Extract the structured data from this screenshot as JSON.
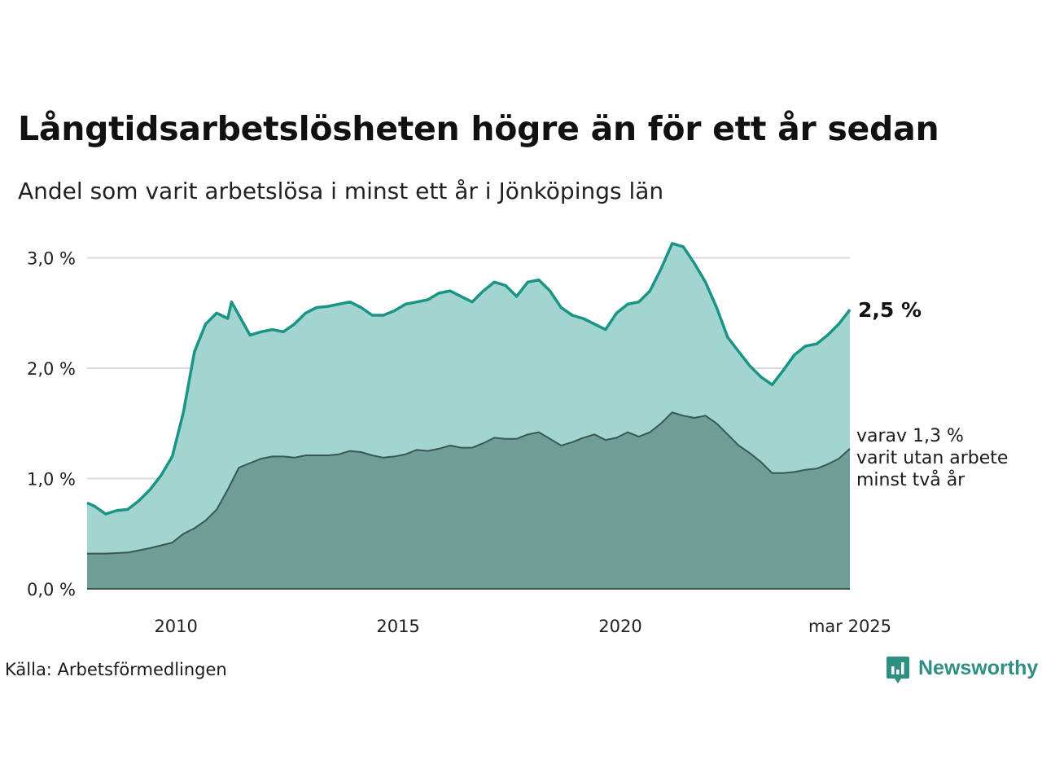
{
  "title": "Långtidsarbetslösheten högre än för ett år sedan",
  "subtitle": "Andel som varit arbetslösa i minst ett år i Jönköpings län",
  "source": "Källa: Arbetsförmedlingen",
  "logo": {
    "text": "Newsworthy",
    "icon": "bar-chart-speech-bubble-icon"
  },
  "colors": {
    "total_line": "#1a9484",
    "total_area": "#a3d5d0",
    "sub_line": "#3a5750",
    "sub_area": "#6f9e97",
    "grid": "#d9d9df"
  },
  "chart_data": {
    "type": "area",
    "title": "Långtidsarbetslösheten högre än för ett år sedan",
    "subtitle": "Andel som varit arbetslösa i minst ett år i Jönköpings län",
    "xlabel": "",
    "ylabel": "",
    "x_ticks": [
      "2010",
      "2015",
      "2020",
      "mar 2025"
    ],
    "y_ticks": [
      "0,0 %",
      "1,0 %",
      "2,0 %",
      "3,0 %"
    ],
    "ylim": [
      0,
      3.2
    ],
    "grid": "horizontal",
    "series": [
      {
        "key": "total",
        "points": [
          [
            "2008-01",
            0.78
          ],
          [
            "2008-03",
            0.75
          ],
          [
            "2008-06",
            0.68
          ],
          [
            "2008-09",
            0.71
          ],
          [
            "2008-12",
            0.72
          ],
          [
            "2009-03",
            0.8
          ],
          [
            "2009-06",
            0.9
          ],
          [
            "2009-09",
            1.03
          ],
          [
            "2009-12",
            1.2
          ],
          [
            "2010-03",
            1.6
          ],
          [
            "2010-06",
            2.15
          ],
          [
            "2010-09",
            2.4
          ],
          [
            "2010-12",
            2.5
          ],
          [
            "2011-03",
            2.45
          ],
          [
            "2011-04",
            2.6
          ],
          [
            "2011-06",
            2.48
          ],
          [
            "2011-09",
            2.3
          ],
          [
            "2011-12",
            2.33
          ],
          [
            "2012-03",
            2.35
          ],
          [
            "2012-06",
            2.33
          ],
          [
            "2012-09",
            2.4
          ],
          [
            "2012-12",
            2.5
          ],
          [
            "2013-03",
            2.55
          ],
          [
            "2013-06",
            2.56
          ],
          [
            "2013-09",
            2.58
          ],
          [
            "2013-12",
            2.6
          ],
          [
            "2014-03",
            2.55
          ],
          [
            "2014-06",
            2.48
          ],
          [
            "2014-09",
            2.48
          ],
          [
            "2014-12",
            2.52
          ],
          [
            "2015-03",
            2.58
          ],
          [
            "2015-06",
            2.6
          ],
          [
            "2015-09",
            2.62
          ],
          [
            "2015-12",
            2.68
          ],
          [
            "2016-03",
            2.7
          ],
          [
            "2016-06",
            2.65
          ],
          [
            "2016-09",
            2.6
          ],
          [
            "2016-12",
            2.7
          ],
          [
            "2017-03",
            2.78
          ],
          [
            "2017-06",
            2.75
          ],
          [
            "2017-09",
            2.65
          ],
          [
            "2017-12",
            2.78
          ],
          [
            "2018-03",
            2.8
          ],
          [
            "2018-06",
            2.7
          ],
          [
            "2018-09",
            2.55
          ],
          [
            "2018-12",
            2.48
          ],
          [
            "2019-03",
            2.45
          ],
          [
            "2019-06",
            2.4
          ],
          [
            "2019-09",
            2.35
          ],
          [
            "2019-12",
            2.5
          ],
          [
            "2020-03",
            2.58
          ],
          [
            "2020-06",
            2.6
          ],
          [
            "2020-09",
            2.7
          ],
          [
            "2020-12",
            2.9
          ],
          [
            "2021-03",
            3.13
          ],
          [
            "2021-06",
            3.1
          ],
          [
            "2021-09",
            2.95
          ],
          [
            "2021-12",
            2.78
          ],
          [
            "2022-03",
            2.55
          ],
          [
            "2022-06",
            2.28
          ],
          [
            "2022-09",
            2.15
          ],
          [
            "2022-12",
            2.02
          ],
          [
            "2023-03",
            1.92
          ],
          [
            "2023-06",
            1.85
          ],
          [
            "2023-09",
            1.98
          ],
          [
            "2023-12",
            2.12
          ],
          [
            "2024-03",
            2.2
          ],
          [
            "2024-06",
            2.22
          ],
          [
            "2024-09",
            2.3
          ],
          [
            "2024-12",
            2.4
          ],
          [
            "2025-03",
            2.53
          ]
        ],
        "last_label": "2,5 %"
      },
      {
        "key": "two_years",
        "points": [
          [
            "2008-01",
            0.32
          ],
          [
            "2008-06",
            0.32
          ],
          [
            "2008-12",
            0.33
          ],
          [
            "2009-06",
            0.37
          ],
          [
            "2009-12",
            0.42
          ],
          [
            "2010-03",
            0.5
          ],
          [
            "2010-06",
            0.55
          ],
          [
            "2010-09",
            0.62
          ],
          [
            "2010-12",
            0.72
          ],
          [
            "2011-03",
            0.9
          ],
          [
            "2011-06",
            1.1
          ],
          [
            "2011-09",
            1.14
          ],
          [
            "2011-12",
            1.18
          ],
          [
            "2012-03",
            1.2
          ],
          [
            "2012-06",
            1.2
          ],
          [
            "2012-09",
            1.19
          ],
          [
            "2012-12",
            1.21
          ],
          [
            "2013-03",
            1.21
          ],
          [
            "2013-06",
            1.21
          ],
          [
            "2013-09",
            1.22
          ],
          [
            "2013-12",
            1.25
          ],
          [
            "2014-03",
            1.24
          ],
          [
            "2014-06",
            1.21
          ],
          [
            "2014-09",
            1.19
          ],
          [
            "2014-12",
            1.2
          ],
          [
            "2015-03",
            1.22
          ],
          [
            "2015-06",
            1.26
          ],
          [
            "2015-09",
            1.25
          ],
          [
            "2015-12",
            1.27
          ],
          [
            "2016-03",
            1.3
          ],
          [
            "2016-06",
            1.28
          ],
          [
            "2016-09",
            1.28
          ],
          [
            "2016-12",
            1.32
          ],
          [
            "2017-03",
            1.37
          ],
          [
            "2017-06",
            1.36
          ],
          [
            "2017-09",
            1.36
          ],
          [
            "2017-12",
            1.4
          ],
          [
            "2018-03",
            1.42
          ],
          [
            "2018-06",
            1.36
          ],
          [
            "2018-09",
            1.3
          ],
          [
            "2018-12",
            1.33
          ],
          [
            "2019-03",
            1.37
          ],
          [
            "2019-06",
            1.4
          ],
          [
            "2019-09",
            1.35
          ],
          [
            "2019-12",
            1.37
          ],
          [
            "2020-03",
            1.42
          ],
          [
            "2020-06",
            1.38
          ],
          [
            "2020-09",
            1.42
          ],
          [
            "2020-12",
            1.5
          ],
          [
            "2021-03",
            1.6
          ],
          [
            "2021-06",
            1.57
          ],
          [
            "2021-09",
            1.55
          ],
          [
            "2021-12",
            1.57
          ],
          [
            "2022-03",
            1.5
          ],
          [
            "2022-06",
            1.4
          ],
          [
            "2022-09",
            1.3
          ],
          [
            "2022-12",
            1.23
          ],
          [
            "2023-03",
            1.15
          ],
          [
            "2023-06",
            1.05
          ],
          [
            "2023-09",
            1.05
          ],
          [
            "2023-12",
            1.06
          ],
          [
            "2024-03",
            1.08
          ],
          [
            "2024-06",
            1.09
          ],
          [
            "2024-09",
            1.13
          ],
          [
            "2024-12",
            1.18
          ],
          [
            "2025-03",
            1.27
          ]
        ],
        "last_label": [
          "varav 1,3 %",
          "varit utan arbete",
          "minst två år"
        ]
      }
    ]
  }
}
